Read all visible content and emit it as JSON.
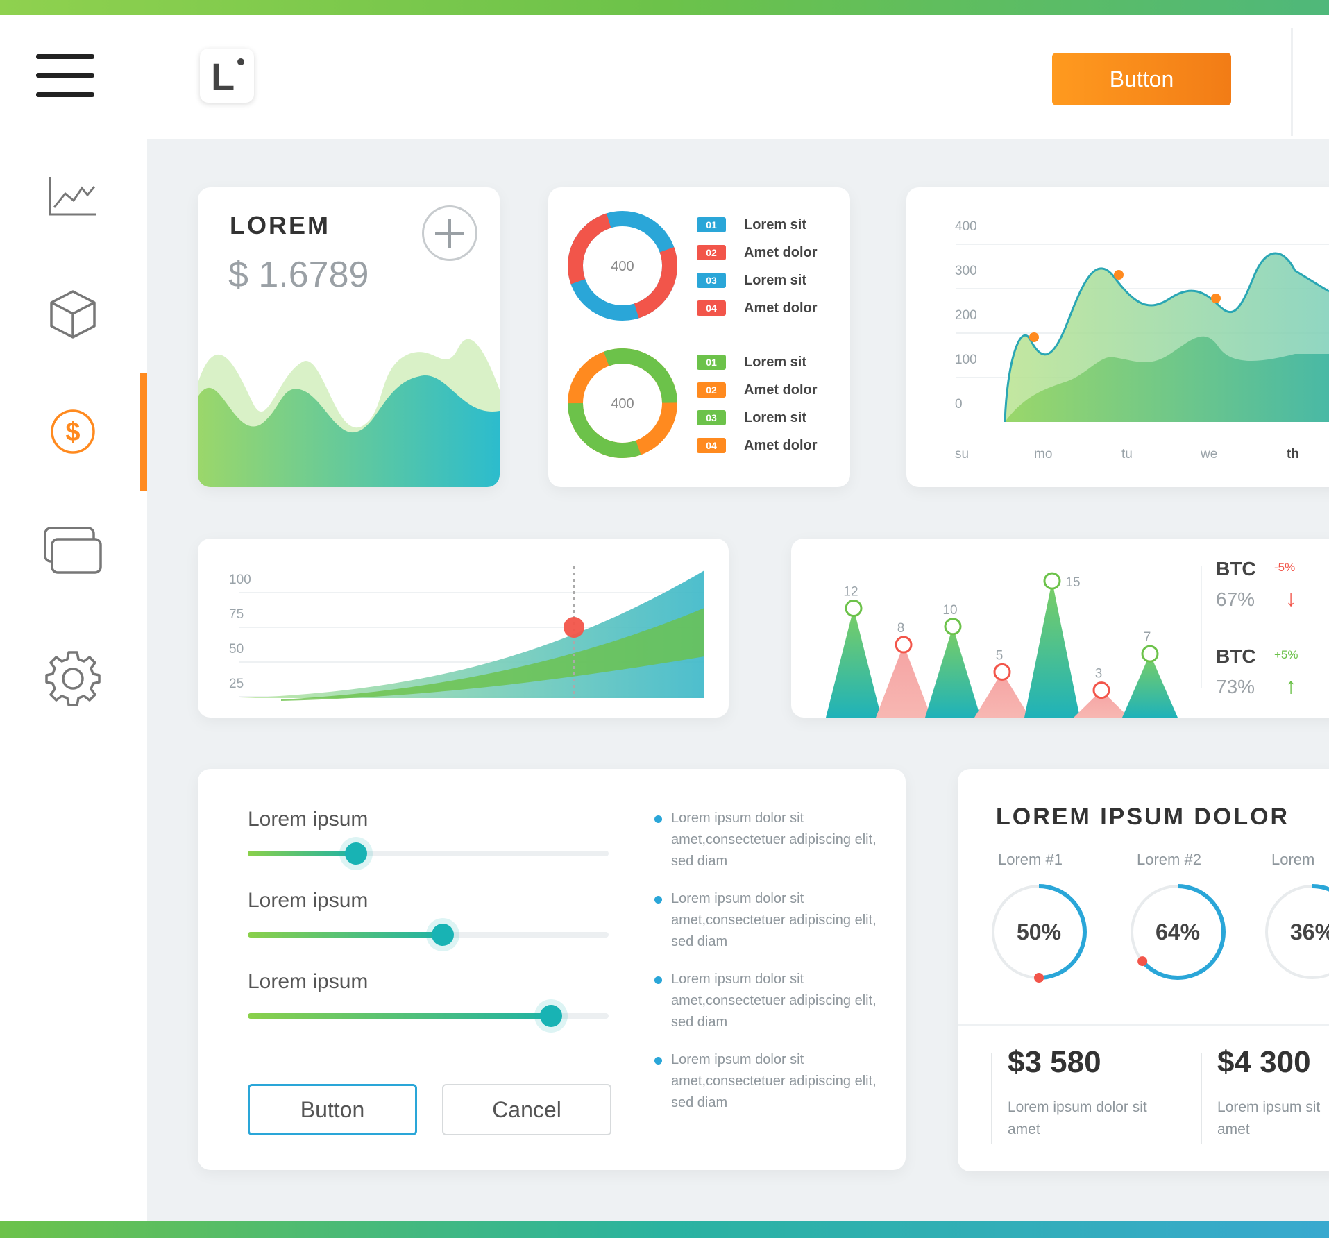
{
  "header": {
    "button_label": "Button",
    "logo_text": "L"
  },
  "nav": [
    "chart-icon",
    "cube-icon",
    "dollar-icon",
    "windows-icon",
    "gear-icon"
  ],
  "colors": {
    "accent": "#ff8a1f",
    "teal": "#18b3b4",
    "green": "#6cc24a",
    "blue": "#2aa6d8",
    "red": "#f2554a",
    "pink": "#f6a3a3"
  },
  "card1": {
    "title": "LOREM",
    "value": "$ 1.6789"
  },
  "donut1": {
    "center": "400",
    "legend": [
      {
        "tag": "01",
        "label": "Lorem sit",
        "color": "#2aa6d8"
      },
      {
        "tag": "02",
        "label": "Amet dolor",
        "color": "#f2554a"
      },
      {
        "tag": "03",
        "label": "Lorem sit",
        "color": "#2aa6d8"
      },
      {
        "tag": "04",
        "label": "Amet dolor",
        "color": "#f2554a"
      }
    ]
  },
  "donut2": {
    "center": "400",
    "legend": [
      {
        "tag": "01",
        "label": "Lorem sit",
        "color": "#6cc24a"
      },
      {
        "tag": "02",
        "label": "Amet dolor",
        "color": "#ff8a1f"
      },
      {
        "tag": "03",
        "label": "Lorem sit",
        "color": "#6cc24a"
      },
      {
        "tag": "04",
        "label": "Amet dolor",
        "color": "#ff8a1f"
      }
    ]
  },
  "area_chart": {
    "y_ticks": [
      "400",
      "300",
      "200",
      "100",
      "0"
    ],
    "x_ticks": [
      "su",
      "mo",
      "tu",
      "we",
      "th"
    ]
  },
  "growth_chart": {
    "y_ticks": [
      "100",
      "75",
      "50",
      "25"
    ]
  },
  "triangle_chart": {
    "values": [
      "12",
      "8",
      "10",
      "5",
      "15",
      "3",
      "7"
    ]
  },
  "btc": [
    {
      "label": "BTC",
      "change": "-5%",
      "pct": "67%",
      "arrow": "↓",
      "color": "#f2554a"
    },
    {
      "label": "BTC",
      "change": "+5%",
      "pct": "73%",
      "arrow": "↑",
      "color": "#6cc24a"
    }
  ],
  "sliders": [
    {
      "label": "Lorem ipsum",
      "value": 0.3
    },
    {
      "label": "Lorem ipsum",
      "value": 0.54
    },
    {
      "label": "Lorem ipsum",
      "value": 0.84
    }
  ],
  "bullets": [
    "Lorem ipsum dolor sit amet,consectetuer adipiscing elit, sed diam",
    "Lorem ipsum dolor sit amet,consectetuer adipiscing elit, sed diam",
    "Lorem ipsum dolor sit amet,consectetuer adipiscing elit, sed diam",
    "Lorem ipsum dolor sit amet,consectetuer adipiscing elit, sed diam"
  ],
  "buttons": {
    "primary": "Button",
    "cancel": "Cancel"
  },
  "progress_card": {
    "title": "LOREM IPSUM DOLOR",
    "items": [
      {
        "label": "Lorem #1",
        "value": "50%",
        "fraction": 0.5
      },
      {
        "label": "Lorem #2",
        "value": "64%",
        "fraction": 0.64
      },
      {
        "label": "Lorem",
        "value": "36%",
        "fraction": 0.36
      }
    ],
    "stats": [
      {
        "value": "$3 580",
        "desc": "Lorem ipsum dolor sit amet"
      },
      {
        "value": "$4 300",
        "desc": "Lorem ipsum sit amet"
      }
    ]
  }
}
